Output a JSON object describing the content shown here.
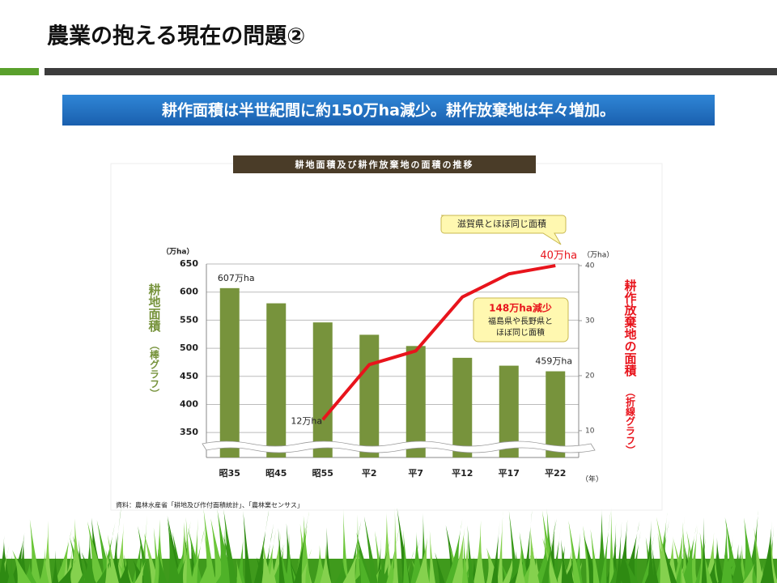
{
  "slide_title": "農業の抱える現在の問題②",
  "banner": "耕作面積は半世紀間に約150万ha減少。耕作放棄地は年々増加。",
  "chart_data": {
    "type": "bar",
    "title": "耕地面積及び耕作放棄地の面積の推移",
    "categories": [
      "昭35",
      "昭45",
      "昭55",
      "平2",
      "平7",
      "平12",
      "平17",
      "平22"
    ],
    "series": [
      {
        "name": "耕地面積",
        "type": "bar",
        "color": "#77933c",
        "values": [
          607,
          580,
          546,
          524,
          504,
          483,
          469,
          459
        ],
        "value_labels": [
          "607万ha",
          null,
          null,
          null,
          null,
          null,
          null,
          "459万ha"
        ]
      },
      {
        "name": "耕作放棄地の面積",
        "type": "line",
        "axis": "y2",
        "color": "#e8141c",
        "values": [
          null,
          null,
          12,
          22,
          24.5,
          34.3,
          38.5,
          40
        ],
        "value_labels": [
          null,
          null,
          "12万ha",
          null,
          null,
          null,
          null,
          "40万ha"
        ]
      }
    ],
    "ylim": [
      320,
      650
    ],
    "yticks": [
      350,
      400,
      450,
      500,
      550,
      600,
      650
    ],
    "y2lim": [
      6.6,
      40.3
    ],
    "y2ticks": [
      10,
      20,
      30,
      40
    ],
    "y_unit": "（万ha）",
    "y2_unit": "（万ha）",
    "x_unit": "（年）",
    "y_label_sub": "（棒グラフ）",
    "y2_label_sub": "（折線グラフ）",
    "annotations": [
      "滋賀県とほぼ同じ面積",
      "148万ha減少",
      "福島県や長野県と",
      "ほぼ同じ面積"
    ],
    "source": "資料：農林水産省「耕地及び作付面積統計」、「農林業センサス」"
  }
}
